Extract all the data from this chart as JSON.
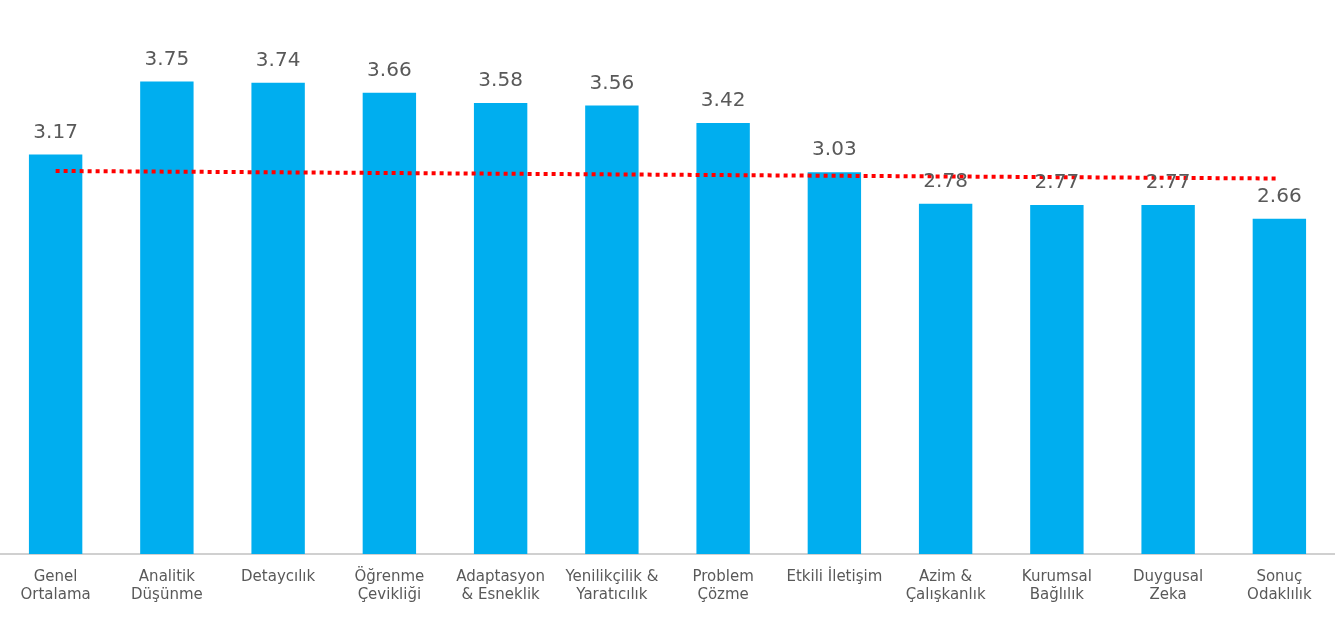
{
  "chart_data": {
    "type": "bar",
    "categories": [
      "Genel Ortalama",
      "Analitik Düşünme",
      "Detaycılık",
      "Öğrenme Çevikliği",
      "Adaptasyon & Esneklik",
      "Yenilikçilik & Yaratıcılık",
      "Problem Çözme",
      "Etkili İletişim",
      "Azim & Çalışkanlık",
      "Kurumsal Bağlılık",
      "Duygusal Zeka",
      "Sonuç Odaklılık"
    ],
    "series": [
      {
        "color": "#00aeef",
        "values": [
          3.17,
          3.75,
          3.74,
          3.66,
          3.58,
          3.56,
          3.42,
          3.03,
          2.78,
          2.77,
          2.77,
          2.66
        ],
        "value_labels": [
          "3.17",
          "3.75",
          "3.74",
          "3.66",
          "3.58",
          "3.56",
          "3.42",
          "3.03",
          "2.78",
          "2.77",
          "2.77",
          "2.66"
        ]
      },
      {
        "type": "line",
        "color": "#ff0000",
        "line_style": "dotted",
        "marker": "none",
        "x": [
          "Genel Ortalama",
          "Sonuç Odaklılık"
        ],
        "values": [
          3.04,
          2.98
        ]
      }
    ],
    "grid": false,
    "legend": false
  }
}
